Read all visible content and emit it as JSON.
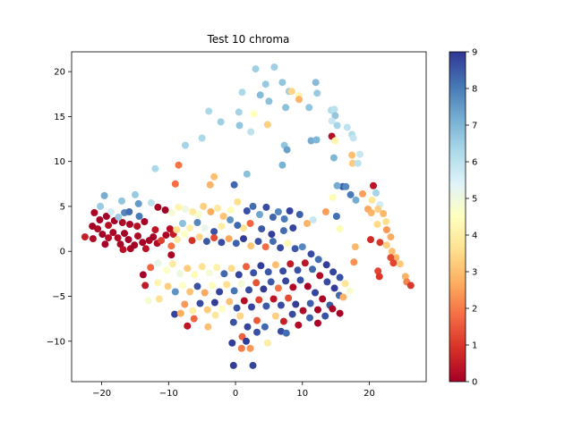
{
  "chart_data": {
    "type": "scatter",
    "title": "Test 10 chroma",
    "xlabel": "",
    "ylabel": "",
    "xlim": [
      -24.5,
      28.5
    ],
    "ylim": [
      -14.5,
      22.2
    ],
    "xticks": [
      -20,
      -10,
      0,
      10,
      20
    ],
    "yticks": [
      -10,
      -5,
      0,
      5,
      10,
      15,
      20
    ],
    "grid": false,
    "colorbar": {
      "cmap": "RdYlBu",
      "range": [
        0,
        9
      ],
      "ticks": [
        0,
        1,
        2,
        3,
        4,
        5,
        6,
        7,
        8,
        9
      ]
    },
    "colormap_stops": [
      "#a50026",
      "#d73027",
      "#f46d43",
      "#fdae61",
      "#fee090",
      "#ffffbf",
      "#e0f3f8",
      "#abd9e9",
      "#74add1",
      "#4575b4",
      "#313695"
    ],
    "points": [
      [
        3,
        20.3,
        6.5
      ],
      [
        5.8,
        20.5,
        6.5
      ],
      [
        4.5,
        18.6,
        6.6
      ],
      [
        1,
        17.7,
        6.3
      ],
      [
        3.7,
        17.4,
        6.9
      ],
      [
        7,
        18.8,
        6.7
      ],
      [
        8,
        17.8,
        6.5
      ],
      [
        8.4,
        17.8,
        3.4
      ],
      [
        9.5,
        17.3,
        4.2
      ],
      [
        12,
        18.8,
        6.9
      ],
      [
        12.2,
        17.6,
        6.6
      ],
      [
        7.5,
        16.0,
        6.8
      ],
      [
        9.5,
        16.9,
        2.8
      ],
      [
        11,
        16.0,
        6.7
      ],
      [
        -4,
        15.6,
        6.3
      ],
      [
        0.5,
        15.5,
        6.4
      ],
      [
        2.7,
        15.3,
        4.5
      ],
      [
        5,
        16.7,
        6.8
      ],
      [
        14.3,
        15.7,
        6.2
      ],
      [
        14.8,
        15.8,
        6.0
      ],
      [
        14.9,
        15.1,
        6.7
      ],
      [
        14.4,
        14.5,
        5.8
      ],
      [
        15.2,
        14.0,
        6.4
      ],
      [
        -2.2,
        14.4,
        6.5
      ],
      [
        0.6,
        14.0,
        6.7
      ],
      [
        2.3,
        13.3,
        6.0
      ],
      [
        4.8,
        14.1,
        3.3
      ],
      [
        16.7,
        13.8,
        6.0
      ],
      [
        17.4,
        13.0,
        6.2
      ],
      [
        17.6,
        12.6,
        5.9
      ],
      [
        14.4,
        12.8,
        0.3
      ],
      [
        14.9,
        12.3,
        4.2
      ],
      [
        11.3,
        12.3,
        7.2
      ],
      [
        12.1,
        12.4,
        7.0
      ],
      [
        -5,
        12.6,
        6.3
      ],
      [
        -7.5,
        11.8,
        6.4
      ],
      [
        7.3,
        11.8,
        6.7
      ],
      [
        7.7,
        11.3,
        7.4
      ],
      [
        14.7,
        10.4,
        7.0
      ],
      [
        17.4,
        10.7,
        3.0
      ],
      [
        18.6,
        10.8,
        5.8
      ],
      [
        -8.5,
        9.6,
        1.9
      ],
      [
        -12,
        9.2,
        6.3
      ],
      [
        7,
        9.6,
        7.1
      ],
      [
        17.5,
        9.8,
        3.2
      ],
      [
        18.3,
        9.8,
        6.0
      ],
      [
        1.7,
        8.6,
        6.8
      ],
      [
        -3.2,
        8.3,
        3.0
      ],
      [
        -3.8,
        7.4,
        2.8
      ],
      [
        -0.2,
        7.4,
        8.3
      ],
      [
        16,
        7.2,
        8.4
      ],
      [
        16.5,
        7.2,
        7.8
      ],
      [
        17.2,
        6.3,
        8.0
      ],
      [
        18,
        5.7,
        7.2
      ],
      [
        19,
        6.4,
        2.5
      ],
      [
        20.6,
        7.3,
        0.4
      ],
      [
        21,
        6.5,
        6.4
      ],
      [
        20.4,
        5.7,
        3.8
      ],
      [
        21.6,
        5.2,
        5.6
      ],
      [
        -9,
        7.5,
        1.8
      ],
      [
        -12.6,
        5.4,
        6.0
      ],
      [
        -15,
        6.3,
        6.6
      ],
      [
        -14.5,
        5.3,
        7.5
      ],
      [
        -17,
        5.6,
        6.7
      ],
      [
        -19.6,
        6.2,
        7.2
      ],
      [
        -20.2,
        5.0,
        6.6
      ],
      [
        14.5,
        6.0,
        4.4
      ],
      [
        15.2,
        7.3,
        7.2
      ],
      [
        19.8,
        4.7,
        2.6
      ],
      [
        20.3,
        4.3,
        2.8
      ],
      [
        21.3,
        4.7,
        3.3
      ],
      [
        22.1,
        4.2,
        2.9
      ],
      [
        22.5,
        3.3,
        3.6
      ],
      [
        21.2,
        3.0,
        3.5
      ],
      [
        22.6,
        2.4,
        2.4
      ],
      [
        23.2,
        1.6,
        2.7
      ],
      [
        21.6,
        1.0,
        1.0
      ],
      [
        20.2,
        1.3,
        0.8
      ],
      [
        22.6,
        0.7,
        3.3
      ],
      [
        23.4,
        0.0,
        3.0
      ],
      [
        24.0,
        -0.7,
        2.8
      ],
      [
        23.2,
        -0.7,
        1.3
      ],
      [
        23.6,
        -1.3,
        1.2
      ],
      [
        24.6,
        -1.4,
        3.2
      ],
      [
        25.4,
        -2.8,
        2.8
      ],
      [
        25.6,
        -3.4,
        2.1
      ],
      [
        26.2,
        -3.8,
        1.0
      ],
      [
        21.3,
        -2.2,
        1.2
      ],
      [
        21.5,
        -2.8,
        1.0
      ],
      [
        17.9,
        0.5,
        2.9
      ],
      [
        17.7,
        -1.2,
        2.3
      ],
      [
        15.1,
        3.9,
        8.2
      ],
      [
        15.6,
        2.5,
        4.4
      ],
      [
        13.5,
        4.4,
        2.5
      ],
      [
        -9.6,
        0.6,
        1.9
      ],
      [
        -21.1,
        4.3,
        0.1
      ],
      [
        -20.3,
        3.5,
        0.0
      ],
      [
        -19.3,
        3.9,
        0.0
      ],
      [
        -19.0,
        2.9,
        0.3
      ],
      [
        -21.4,
        2.8,
        0.0
      ],
      [
        -20.6,
        2.5,
        0.2
      ],
      [
        -19.9,
        1.9,
        0.0
      ],
      [
        -21.3,
        1.4,
        0.2
      ],
      [
        -22.5,
        1.6,
        0.6
      ],
      [
        -19.5,
        0.8,
        0.0
      ],
      [
        -19.0,
        1.5,
        0.3
      ],
      [
        -18.3,
        2.1,
        0.1
      ],
      [
        -17.6,
        1.5,
        0.2
      ],
      [
        -16.6,
        2.0,
        0.0
      ],
      [
        -16.0,
        1.3,
        0.0
      ],
      [
        -17.2,
        0.8,
        0.1
      ],
      [
        -16.8,
        0.2,
        0.3
      ],
      [
        -15.7,
        0.3,
        0.1
      ],
      [
        -15.1,
        0.7,
        0.0
      ],
      [
        -14.6,
        1.7,
        0.2
      ],
      [
        -13.9,
        1.0,
        0.0
      ],
      [
        -13.4,
        0.3,
        0.3
      ],
      [
        -12.9,
        1.2,
        0.1
      ],
      [
        -12.3,
        1.6,
        0.0
      ],
      [
        -11.7,
        0.9,
        0.2
      ],
      [
        -11.1,
        1.2,
        1.1
      ],
      [
        -10.4,
        1.8,
        0.1
      ],
      [
        -9.8,
        2.5,
        0.3
      ],
      [
        -9.3,
        1.9,
        0.5
      ],
      [
        -18.1,
        3.4,
        0.0
      ],
      [
        -16.9,
        3.2,
        0.2
      ],
      [
        -15.8,
        3.0,
        0.1
      ],
      [
        -14.7,
        2.8,
        0.3
      ],
      [
        -13.6,
        3.3,
        0.0
      ],
      [
        -12.0,
        2.4,
        0.4
      ],
      [
        -14.4,
        3.9,
        8.0
      ],
      [
        -16.6,
        4.3,
        7.8
      ],
      [
        -18.6,
        4.4,
        5.6
      ],
      [
        -17.5,
        3.8,
        6.6
      ],
      [
        -15.9,
        4.4,
        8.2
      ],
      [
        -11.6,
        4.9,
        0.1
      ],
      [
        -10.5,
        4.6,
        0.0
      ],
      [
        -9.5,
        4.3,
        4.8
      ],
      [
        -8.5,
        4.9,
        4.2
      ],
      [
        -7.5,
        4.7,
        5.0
      ],
      [
        -6.4,
        4.4,
        3.9
      ],
      [
        -5.5,
        4.1,
        4.7
      ],
      [
        -4.8,
        5.0,
        3.3
      ],
      [
        -3.7,
        4.4,
        2.7
      ],
      [
        -2.7,
        4.8,
        3.9
      ],
      [
        -1.8,
        3.9,
        3.1
      ],
      [
        -0.7,
        4.6,
        4.4
      ],
      [
        0.3,
        5.5,
        3.6
      ],
      [
        1.7,
        4.5,
        8.6
      ],
      [
        2.6,
        5.0,
        8.2
      ],
      [
        3.6,
        4.1,
        7.3
      ],
      [
        4.6,
        4.9,
        8.7
      ],
      [
        5.6,
        3.8,
        8.3
      ],
      [
        6.4,
        4.4,
        7.8
      ],
      [
        7.3,
        3.6,
        8.0
      ],
      [
        8.1,
        4.5,
        8.8
      ],
      [
        9.6,
        4.1,
        8.4
      ],
      [
        10.7,
        3.1,
        2.8
      ],
      [
        11.6,
        3.5,
        5.8
      ],
      [
        8.6,
        2.6,
        8.8
      ],
      [
        7.2,
        2.3,
        8.2
      ],
      [
        5.4,
        1.9,
        8.9
      ],
      [
        3.9,
        2.5,
        8.5
      ],
      [
        2.2,
        3.1,
        1.7
      ],
      [
        1.2,
        2.6,
        3.7
      ],
      [
        0.3,
        2.9,
        8.3
      ],
      [
        -0.8,
        3.5,
        7.6
      ],
      [
        -2.1,
        2.8,
        4.0
      ],
      [
        -3.2,
        2.2,
        8.6
      ],
      [
        -4.6,
        2.6,
        5.2
      ],
      [
        -5.7,
        3.2,
        7.8
      ],
      [
        -6.8,
        2.6,
        4.1
      ],
      [
        -7.9,
        3.1,
        6.8
      ],
      [
        -8.8,
        2.4,
        3.6
      ],
      [
        -9.6,
        -0.4,
        0.1
      ],
      [
        -8.7,
        1.3,
        3.9
      ],
      [
        -7.6,
        1.9,
        4.5
      ],
      [
        -6.5,
        1.2,
        0.9
      ],
      [
        -5.4,
        1.6,
        3.4
      ],
      [
        -4.3,
        1.1,
        8.5
      ],
      [
        -3.2,
        1.5,
        1.3
      ],
      [
        -2.1,
        1.0,
        8.7
      ],
      [
        -1.0,
        1.4,
        2.6
      ],
      [
        0.1,
        0.9,
        8.4
      ],
      [
        1.2,
        1.4,
        8.9
      ],
      [
        2.3,
        0.6,
        3.1
      ],
      [
        3.4,
        1.1,
        8.6
      ],
      [
        4.5,
        0.5,
        1.8
      ],
      [
        5.6,
        1.1,
        8.2
      ],
      [
        6.7,
        0.4,
        8.7
      ],
      [
        7.8,
        0.9,
        4.3
      ],
      [
        8.9,
        0.3,
        8.5
      ],
      [
        10.0,
        0.5,
        7.8
      ],
      [
        11.3,
        -0.3,
        8.7
      ],
      [
        12.4,
        -0.9,
        8.2
      ],
      [
        13.6,
        -1.5,
        8.9
      ],
      [
        14.6,
        -2.3,
        8.8
      ],
      [
        15.6,
        -2.9,
        8.6
      ],
      [
        16.4,
        -3.6,
        3.8
      ],
      [
        17.1,
        -4.4,
        4.7
      ],
      [
        -13.8,
        -2.6,
        0.0
      ],
      [
        -12.7,
        -1.8,
        1.7
      ],
      [
        -11.6,
        -1.3,
        5.2
      ],
      [
        -10.3,
        -2.1,
        4.6
      ],
      [
        -9.4,
        -1.4,
        3.9
      ],
      [
        -8.3,
        -2.5,
        5.0
      ],
      [
        -7.2,
        -1.9,
        3.2
      ],
      [
        -6.1,
        -2.6,
        4.4
      ],
      [
        -5.0,
        -1.7,
        3.7
      ],
      [
        -3.9,
        -2.4,
        4.8
      ],
      [
        -2.8,
        -1.8,
        4.1
      ],
      [
        -1.7,
        -2.5,
        8.3
      ],
      [
        -0.6,
        -1.9,
        3.5
      ],
      [
        0.5,
        -2.6,
        8.8
      ],
      [
        1.6,
        -1.7,
        1.6
      ],
      [
        2.7,
        -2.4,
        8.6
      ],
      [
        3.8,
        -1.6,
        8.9
      ],
      [
        4.9,
        -2.3,
        8.5
      ],
      [
        6.0,
        -1.5,
        3.0
      ],
      [
        7.1,
        -2.2,
        8.7
      ],
      [
        8.2,
        -1.4,
        0.5
      ],
      [
        9.3,
        -2.1,
        8.6
      ],
      [
        10.4,
        -1.3,
        0.4
      ],
      [
        11.5,
        -2.0,
        8.3
      ],
      [
        12.6,
        -2.7,
        0.2
      ],
      [
        13.7,
        -3.4,
        8.7
      ],
      [
        14.8,
        -4.1,
        8.9
      ],
      [
        15.5,
        -4.9,
        8.3
      ],
      [
        -13.5,
        -3.8,
        0.5
      ],
      [
        -11.6,
        -3.5,
        4.2
      ],
      [
        -10.1,
        -3.9,
        3.3
      ],
      [
        -9.0,
        -4.5,
        7.6
      ],
      [
        -7.9,
        -3.8,
        4.6
      ],
      [
        -6.8,
        -4.5,
        3.1
      ],
      [
        -5.7,
        -3.9,
        8.6
      ],
      [
        -4.6,
        -4.6,
        2.6
      ],
      [
        -3.5,
        -3.8,
        4.4
      ],
      [
        -2.4,
        -4.5,
        8.8
      ],
      [
        -1.3,
        -3.7,
        3.6
      ],
      [
        -0.2,
        -4.4,
        8.1
      ],
      [
        0.9,
        -3.6,
        4.9
      ],
      [
        2.0,
        -4.3,
        8.7
      ],
      [
        3.1,
        -3.5,
        1.4
      ],
      [
        4.2,
        -4.2,
        8.9
      ],
      [
        5.3,
        -3.4,
        8.5
      ],
      [
        6.4,
        -4.1,
        1.9
      ],
      [
        7.5,
        -3.3,
        8.8
      ],
      [
        8.6,
        -4.0,
        0.2
      ],
      [
        9.7,
        -3.2,
        8.6
      ],
      [
        10.8,
        -3.9,
        0.0
      ],
      [
        11.9,
        -4.6,
        8.8
      ],
      [
        13.0,
        -5.3,
        0.1
      ],
      [
        14.1,
        -6.0,
        8.5
      ],
      [
        -13.0,
        -5.5,
        4.8
      ],
      [
        -11.4,
        -5.3,
        3.7
      ],
      [
        -9.1,
        -7.0,
        8.8
      ],
      [
        -7.6,
        -5.9,
        2.4
      ],
      [
        -6.4,
        -6.6,
        4.0
      ],
      [
        -5.3,
        -5.8,
        8.7
      ],
      [
        -4.2,
        -6.5,
        3.2
      ],
      [
        -3.1,
        -5.7,
        8.9
      ],
      [
        -2.0,
        -6.4,
        4.5
      ],
      [
        -0.9,
        -5.6,
        3.0
      ],
      [
        0.2,
        -6.3,
        8.6
      ],
      [
        1.3,
        -5.5,
        0.3
      ],
      [
        2.4,
        -6.2,
        8.8
      ],
      [
        3.5,
        -5.4,
        1.2
      ],
      [
        4.6,
        -6.1,
        8.5
      ],
      [
        5.7,
        -5.3,
        0.4
      ],
      [
        6.8,
        -6.0,
        8.7
      ],
      [
        7.9,
        -5.2,
        1.3
      ],
      [
        9.0,
        -5.9,
        8.9
      ],
      [
        10.1,
        -6.6,
        0.2
      ],
      [
        11.2,
        -5.8,
        8.4
      ],
      [
        12.3,
        -6.5,
        0.0
      ],
      [
        13.4,
        -7.2,
        8.6
      ],
      [
        14.5,
        -6.4,
        0.1
      ],
      [
        15.6,
        -6.9,
        0.0
      ],
      [
        16.1,
        -5.1,
        2.8
      ],
      [
        -8.2,
        -6.9,
        2.7
      ],
      [
        -7.2,
        -8.3,
        0.4
      ],
      [
        -6.2,
        -7.5,
        1.7
      ],
      [
        -3.0,
        -7.1,
        3.8
      ],
      [
        -0.3,
        -7.9,
        8.6
      ],
      [
        0.7,
        -7.2,
        3.4
      ],
      [
        1.8,
        -8.4,
        8.8
      ],
      [
        3.2,
        -7.7,
        1.5
      ],
      [
        4.4,
        -8.4,
        8.3
      ],
      [
        6.0,
        -7.2,
        3.3
      ],
      [
        7.2,
        -7.8,
        0.6
      ],
      [
        8.5,
        -7.0,
        8.7
      ],
      [
        9.4,
        -8.2,
        0.2
      ],
      [
        11.1,
        -7.4,
        8.4
      ],
      [
        12.3,
        -8.0,
        0.1
      ],
      [
        -4.1,
        -8.4,
        3.0
      ],
      [
        1.0,
        -9.5,
        1.6
      ],
      [
        1.6,
        -10.0,
        8.9
      ],
      [
        3.2,
        -9.0,
        8.6
      ],
      [
        4.8,
        -10.2,
        4.0
      ],
      [
        6.8,
        -8.9,
        8.7
      ],
      [
        7.6,
        -9.1,
        8.2
      ],
      [
        -0.5,
        -10.2,
        8.9
      ],
      [
        0.9,
        -10.8,
        2.0
      ],
      [
        2.2,
        -10.8,
        2.4
      ],
      [
        -0.3,
        -12.7,
        8.9
      ],
      [
        2.6,
        -12.7,
        8.8
      ]
    ]
  }
}
